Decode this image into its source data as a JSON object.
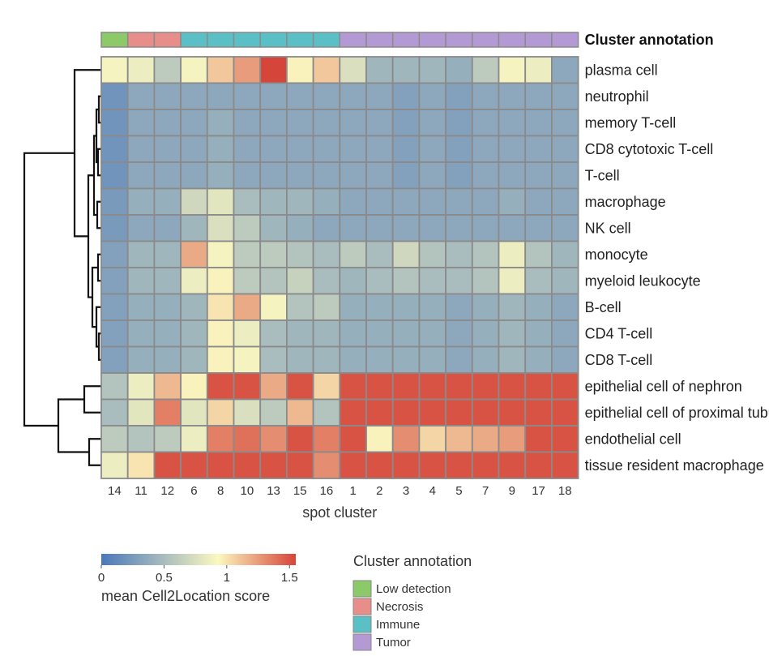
{
  "chart_data": {
    "type": "heatmap",
    "xlabel": "spot cluster",
    "annotation_title": "Cluster annotation",
    "columns": [
      "14",
      "11",
      "12",
      "6",
      "8",
      "10",
      "13",
      "15",
      "16",
      "1",
      "2",
      "3",
      "4",
      "5",
      "7",
      "9",
      "17",
      "18"
    ],
    "column_annotation": [
      "Low detection",
      "Necrosis",
      "Necrosis",
      "Immune",
      "Immune",
      "Immune",
      "Immune",
      "Immune",
      "Immune",
      "Tumor",
      "Tumor",
      "Tumor",
      "Tumor",
      "Tumor",
      "Tumor",
      "Tumor",
      "Tumor",
      "Tumor"
    ],
    "rows": [
      "plasma cell",
      "neutrophil",
      "memory T-cell",
      "CD8 cytotoxic T-cell",
      "T-cell",
      "macrophage",
      "NK cell",
      "monocyte",
      "myeloid leukocyte",
      "B-cell",
      "CD4 T-cell",
      "CD8 T-cell",
      "epithelial cell of nephron",
      "epithelial cell of proximal tubule",
      "endothelial cell",
      "tissue resident macrophage"
    ],
    "values": [
      [
        0.9,
        0.85,
        0.6,
        0.9,
        1.1,
        1.25,
        1.55,
        0.95,
        1.1,
        0.75,
        0.45,
        0.45,
        0.45,
        0.4,
        0.6,
        0.9,
        0.85,
        0.35
      ],
      [
        0.2,
        0.35,
        0.35,
        0.35,
        0.35,
        0.35,
        0.35,
        0.35,
        0.35,
        0.35,
        0.35,
        0.3,
        0.35,
        0.3,
        0.35,
        0.35,
        0.35,
        0.35
      ],
      [
        0.2,
        0.35,
        0.35,
        0.35,
        0.4,
        0.35,
        0.35,
        0.35,
        0.35,
        0.35,
        0.35,
        0.3,
        0.35,
        0.3,
        0.35,
        0.35,
        0.35,
        0.35
      ],
      [
        0.2,
        0.35,
        0.35,
        0.35,
        0.4,
        0.35,
        0.35,
        0.35,
        0.35,
        0.35,
        0.35,
        0.3,
        0.35,
        0.3,
        0.35,
        0.35,
        0.35,
        0.35
      ],
      [
        0.2,
        0.35,
        0.35,
        0.35,
        0.4,
        0.35,
        0.35,
        0.35,
        0.35,
        0.35,
        0.35,
        0.3,
        0.35,
        0.3,
        0.35,
        0.35,
        0.35,
        0.35
      ],
      [
        0.25,
        0.4,
        0.4,
        0.7,
        0.8,
        0.5,
        0.45,
        0.45,
        0.4,
        0.35,
        0.35,
        0.35,
        0.35,
        0.35,
        0.35,
        0.4,
        0.35,
        0.35
      ],
      [
        0.25,
        0.35,
        0.35,
        0.45,
        0.75,
        0.6,
        0.45,
        0.4,
        0.35,
        0.35,
        0.35,
        0.35,
        0.35,
        0.35,
        0.35,
        0.35,
        0.35,
        0.35
      ],
      [
        0.3,
        0.45,
        0.45,
        1.2,
        0.9,
        0.6,
        0.6,
        0.55,
        0.5,
        0.6,
        0.5,
        0.7,
        0.55,
        0.5,
        0.55,
        0.85,
        0.55,
        0.45
      ],
      [
        0.3,
        0.45,
        0.45,
        0.85,
        0.95,
        0.6,
        0.55,
        0.65,
        0.5,
        0.45,
        0.5,
        0.55,
        0.5,
        0.5,
        0.55,
        0.85,
        0.5,
        0.45
      ],
      [
        0.3,
        0.4,
        0.4,
        0.45,
        1.0,
        1.2,
        0.9,
        0.55,
        0.6,
        0.4,
        0.4,
        0.4,
        0.4,
        0.35,
        0.4,
        0.45,
        0.4,
        0.35
      ],
      [
        0.3,
        0.4,
        0.4,
        0.45,
        0.95,
        0.85,
        0.5,
        0.45,
        0.45,
        0.4,
        0.4,
        0.4,
        0.4,
        0.35,
        0.4,
        0.45,
        0.4,
        0.35
      ],
      [
        0.3,
        0.4,
        0.4,
        0.45,
        0.95,
        0.9,
        0.5,
        0.45,
        0.45,
        0.4,
        0.4,
        0.4,
        0.4,
        0.35,
        0.4,
        0.45,
        0.4,
        0.35
      ],
      [
        0.55,
        0.85,
        1.15,
        0.95,
        1.5,
        1.5,
        1.2,
        1.5,
        1.05,
        1.5,
        1.5,
        1.5,
        1.5,
        1.5,
        1.5,
        1.5,
        1.5,
        1.5
      ],
      [
        0.5,
        0.8,
        1.35,
        0.8,
        1.05,
        0.75,
        0.6,
        1.15,
        0.55,
        1.5,
        1.5,
        1.5,
        1.5,
        1.5,
        1.5,
        1.5,
        1.5,
        1.5
      ],
      [
        0.6,
        0.55,
        0.6,
        0.85,
        1.35,
        1.4,
        1.3,
        1.5,
        1.35,
        1.5,
        0.95,
        1.3,
        1.05,
        1.15,
        1.2,
        1.25,
        1.5,
        1.5
      ],
      [
        0.85,
        1.0,
        1.5,
        1.5,
        1.5,
        1.5,
        1.5,
        1.5,
        1.3,
        1.5,
        1.5,
        1.5,
        1.5,
        1.5,
        1.5,
        1.5,
        1.5,
        1.5
      ]
    ],
    "color_range": [
      0,
      1.55
    ],
    "colorbar_ticks": [
      "0",
      "0.5",
      "1",
      "1.5"
    ],
    "colorbar_tick_values": [
      0,
      0.5,
      1,
      1.5
    ],
    "colorbar_label": "mean Cell2Location score",
    "legend_title": "Cluster annotation",
    "categories": [
      {
        "name": "Low detection",
        "color": "#8cc968"
      },
      {
        "name": "Necrosis",
        "color": "#e88e8a"
      },
      {
        "name": "Immune",
        "color": "#5bbfc6"
      },
      {
        "name": "Tumor",
        "color": "#b49ad4"
      }
    ],
    "colors": {
      "low": "#4a78bb",
      "mid": "#fbf8c0",
      "high": "#d6453a",
      "grid": "#8a8a8a"
    }
  }
}
